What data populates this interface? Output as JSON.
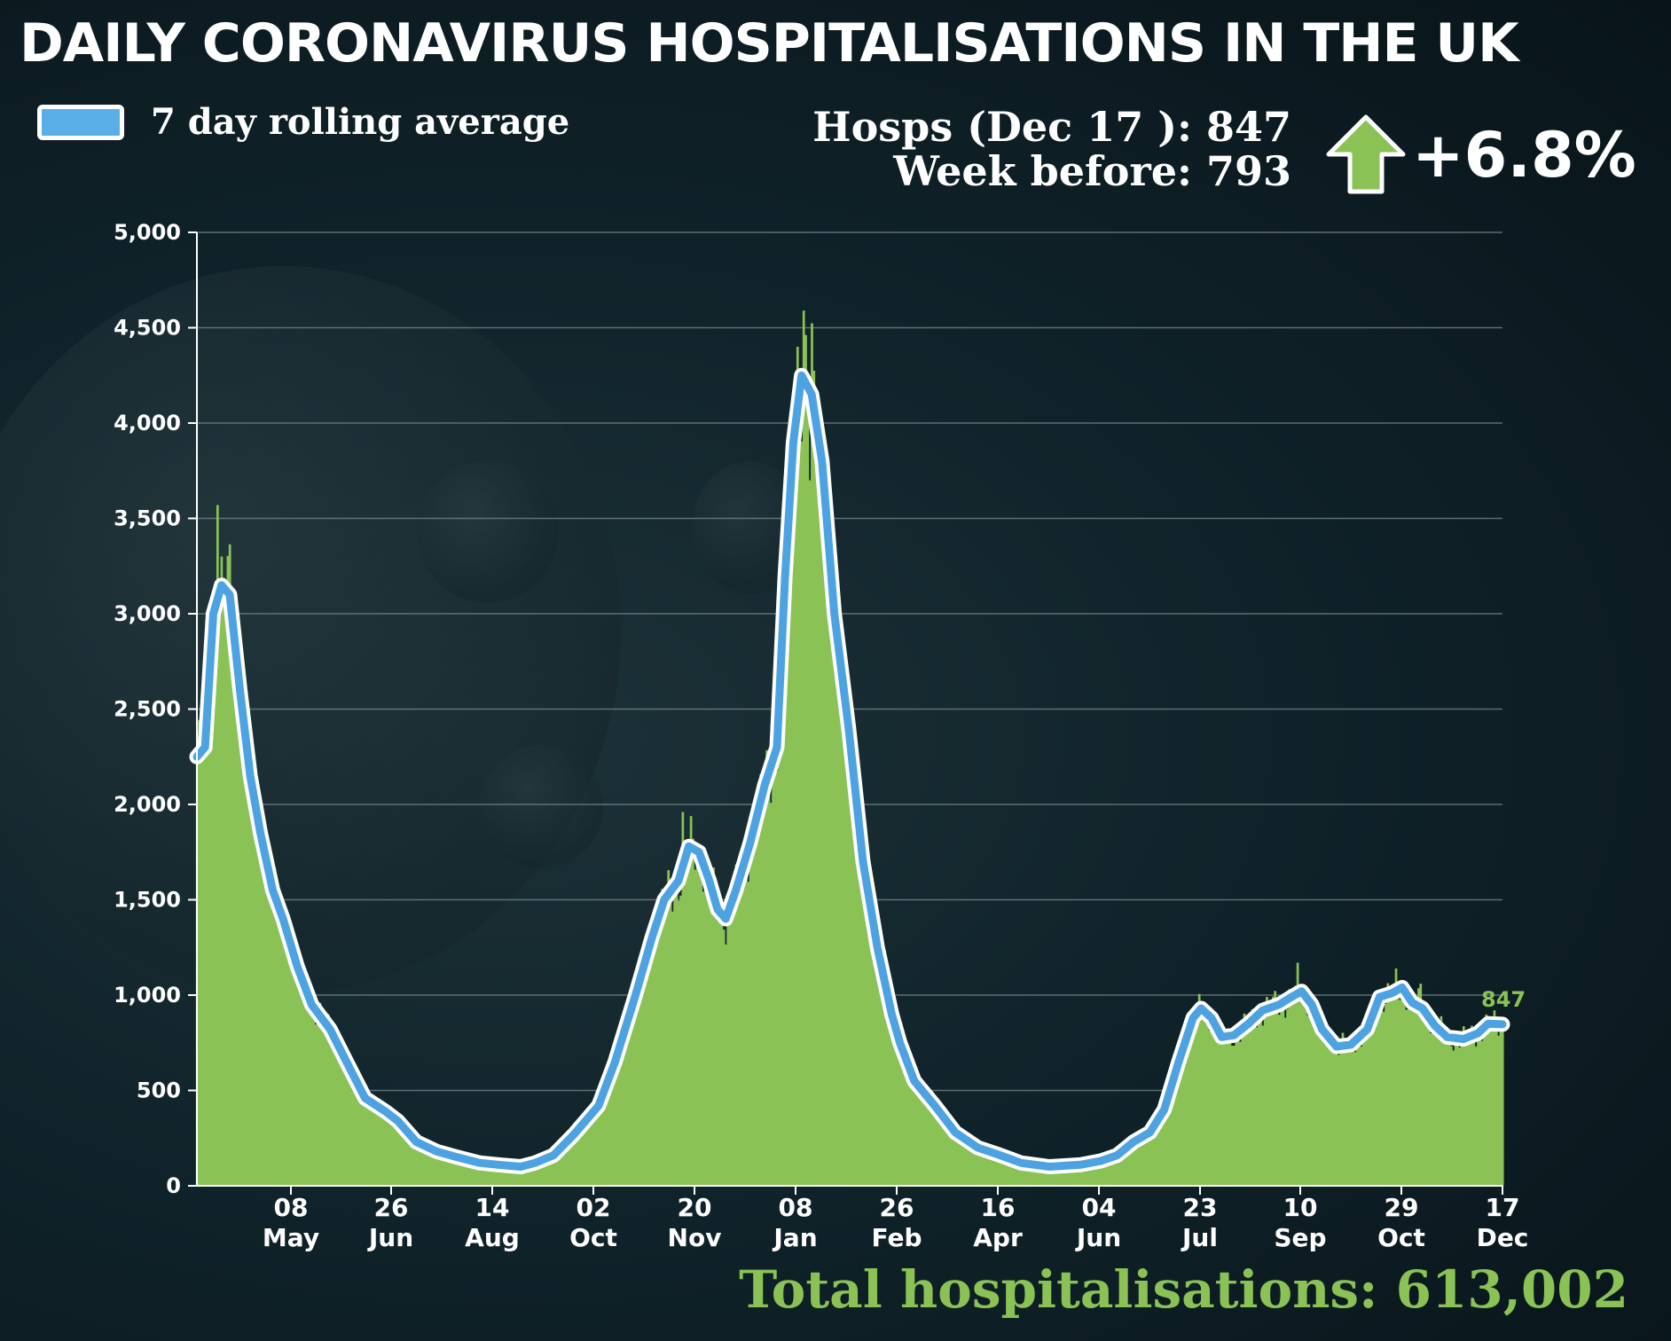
{
  "title": "DAILY CORONAVIRUS HOSPITALISATIONS IN THE UK",
  "legend": {
    "label": "7 day rolling average"
  },
  "stats": {
    "current": "Hosps (Dec 17 ): 847",
    "previous": "Week before: 793",
    "change": "+6.8%"
  },
  "total": "Total hospitalisations: 613,002",
  "colors": {
    "bars": "#8ac256",
    "average": "#4da3e2",
    "outline": "#ffffff",
    "grid": "#7f8e92"
  },
  "icons": {
    "change_arrow": "up-arrow-icon"
  },
  "chart_data": {
    "type": "bar",
    "title": "DAILY CORONAVIRUS HOSPITALISATIONS IN THE UK",
    "xlabel": "",
    "ylabel": "",
    "ylim": [
      0,
      5000
    ],
    "yticks": [
      0,
      500,
      1000,
      1500,
      2000,
      2500,
      3000,
      3500,
      4000,
      4500,
      5000
    ],
    "ytick_labels": [
      "0",
      "500",
      "1,000",
      "1,500",
      "2,000",
      "2,500",
      "3,000",
      "3,500",
      "4,000",
      "4,500",
      "5,000"
    ],
    "xtick_labels": [
      {
        "day": "08",
        "month": "May"
      },
      {
        "day": "26",
        "month": "Jun"
      },
      {
        "day": "14",
        "month": "Aug"
      },
      {
        "day": "02",
        "month": "Oct"
      },
      {
        "day": "20",
        "month": "Nov"
      },
      {
        "day": "08",
        "month": "Jan"
      },
      {
        "day": "26",
        "month": "Feb"
      },
      {
        "day": "16",
        "month": "Apr"
      },
      {
        "day": "04",
        "month": "Jun"
      },
      {
        "day": "23",
        "month": "Jul"
      },
      {
        "day": "10",
        "month": "Sep"
      },
      {
        "day": "29",
        "month": "Oct"
      },
      {
        "day": "17",
        "month": "Dec"
      }
    ],
    "x_range": [
      "2020-03-20",
      "2021-12-17"
    ],
    "grid": true,
    "end_label": "847",
    "series": [
      {
        "name": "7 day rolling average",
        "style": "line",
        "points": [
          [
            "2020-03-20",
            2250
          ],
          [
            "2020-03-24",
            2300
          ],
          [
            "2020-03-28",
            3000
          ],
          [
            "2020-04-01",
            3150
          ],
          [
            "2020-04-05",
            3100
          ],
          [
            "2020-04-10",
            2600
          ],
          [
            "2020-04-15",
            2150
          ],
          [
            "2020-04-20",
            1850
          ],
          [
            "2020-04-26",
            1550
          ],
          [
            "2020-05-01",
            1400
          ],
          [
            "2020-05-08",
            1150
          ],
          [
            "2020-05-15",
            950
          ],
          [
            "2020-05-24",
            820
          ],
          [
            "2020-06-01",
            650
          ],
          [
            "2020-06-10",
            460
          ],
          [
            "2020-06-20",
            390
          ],
          [
            "2020-06-26",
            340
          ],
          [
            "2020-07-05",
            230
          ],
          [
            "2020-07-15",
            180
          ],
          [
            "2020-07-25",
            150
          ],
          [
            "2020-08-05",
            120
          ],
          [
            "2020-08-14",
            110
          ],
          [
            "2020-08-25",
            100
          ],
          [
            "2020-09-01",
            120
          ],
          [
            "2020-09-10",
            160
          ],
          [
            "2020-09-20",
            270
          ],
          [
            "2020-10-02",
            420
          ],
          [
            "2020-10-10",
            650
          ],
          [
            "2020-10-20",
            1000
          ],
          [
            "2020-10-28",
            1300
          ],
          [
            "2020-11-03",
            1500
          ],
          [
            "2020-11-10",
            1600
          ],
          [
            "2020-11-15",
            1780
          ],
          [
            "2020-11-20",
            1750
          ],
          [
            "2020-11-25",
            1600
          ],
          [
            "2020-11-29",
            1450
          ],
          [
            "2020-12-03",
            1400
          ],
          [
            "2020-12-08",
            1550
          ],
          [
            "2020-12-15",
            1800
          ],
          [
            "2020-12-22",
            2100
          ],
          [
            "2020-12-28",
            2300
          ],
          [
            "2021-01-01",
            3200
          ],
          [
            "2021-01-05",
            3900
          ],
          [
            "2021-01-09",
            4250
          ],
          [
            "2021-01-14",
            4150
          ],
          [
            "2021-01-19",
            3800
          ],
          [
            "2021-01-25",
            3000
          ],
          [
            "2021-02-01",
            2400
          ],
          [
            "2021-02-08",
            1700
          ],
          [
            "2021-02-15",
            1250
          ],
          [
            "2021-02-22",
            900
          ],
          [
            "2021-02-26",
            750
          ],
          [
            "2021-03-05",
            550
          ],
          [
            "2021-03-15",
            420
          ],
          [
            "2021-03-25",
            280
          ],
          [
            "2021-04-05",
            200
          ],
          [
            "2021-04-16",
            160
          ],
          [
            "2021-04-26",
            120
          ],
          [
            "2021-05-10",
            100
          ],
          [
            "2021-05-25",
            110
          ],
          [
            "2021-06-04",
            130
          ],
          [
            "2021-06-12",
            160
          ],
          [
            "2021-06-20",
            230
          ],
          [
            "2021-06-28",
            280
          ],
          [
            "2021-07-05",
            400
          ],
          [
            "2021-07-12",
            650
          ],
          [
            "2021-07-19",
            880
          ],
          [
            "2021-07-23",
            930
          ],
          [
            "2021-07-28",
            880
          ],
          [
            "2021-08-02",
            780
          ],
          [
            "2021-08-08",
            790
          ],
          [
            "2021-08-15",
            850
          ],
          [
            "2021-08-22",
            920
          ],
          [
            "2021-08-30",
            950
          ],
          [
            "2021-09-05",
            990
          ],
          [
            "2021-09-10",
            1020
          ],
          [
            "2021-09-15",
            950
          ],
          [
            "2021-09-20",
            820
          ],
          [
            "2021-09-27",
            730
          ],
          [
            "2021-10-04",
            740
          ],
          [
            "2021-10-12",
            820
          ],
          [
            "2021-10-18",
            990
          ],
          [
            "2021-10-24",
            1010
          ],
          [
            "2021-10-29",
            1040
          ],
          [
            "2021-11-03",
            960
          ],
          [
            "2021-11-08",
            930
          ],
          [
            "2021-11-14",
            840
          ],
          [
            "2021-11-20",
            780
          ],
          [
            "2021-11-28",
            770
          ],
          [
            "2021-12-05",
            800
          ],
          [
            "2021-12-10",
            850
          ],
          [
            "2021-12-17",
            847
          ]
        ]
      },
      {
        "name": "",
        "style": "bars",
        "spikes": [
          [
            "2020-03-30",
            3570
          ],
          [
            "2020-04-01",
            3300
          ],
          [
            "2020-11-12",
            1960
          ],
          [
            "2021-01-07",
            4400
          ],
          [
            "2021-01-10",
            4590
          ],
          [
            "2021-01-13",
            3700
          ],
          [
            "2021-09-08",
            1170
          ],
          [
            "2021-10-26",
            1140
          ],
          [
            "2021-11-07",
            1060
          ]
        ]
      }
    ]
  }
}
